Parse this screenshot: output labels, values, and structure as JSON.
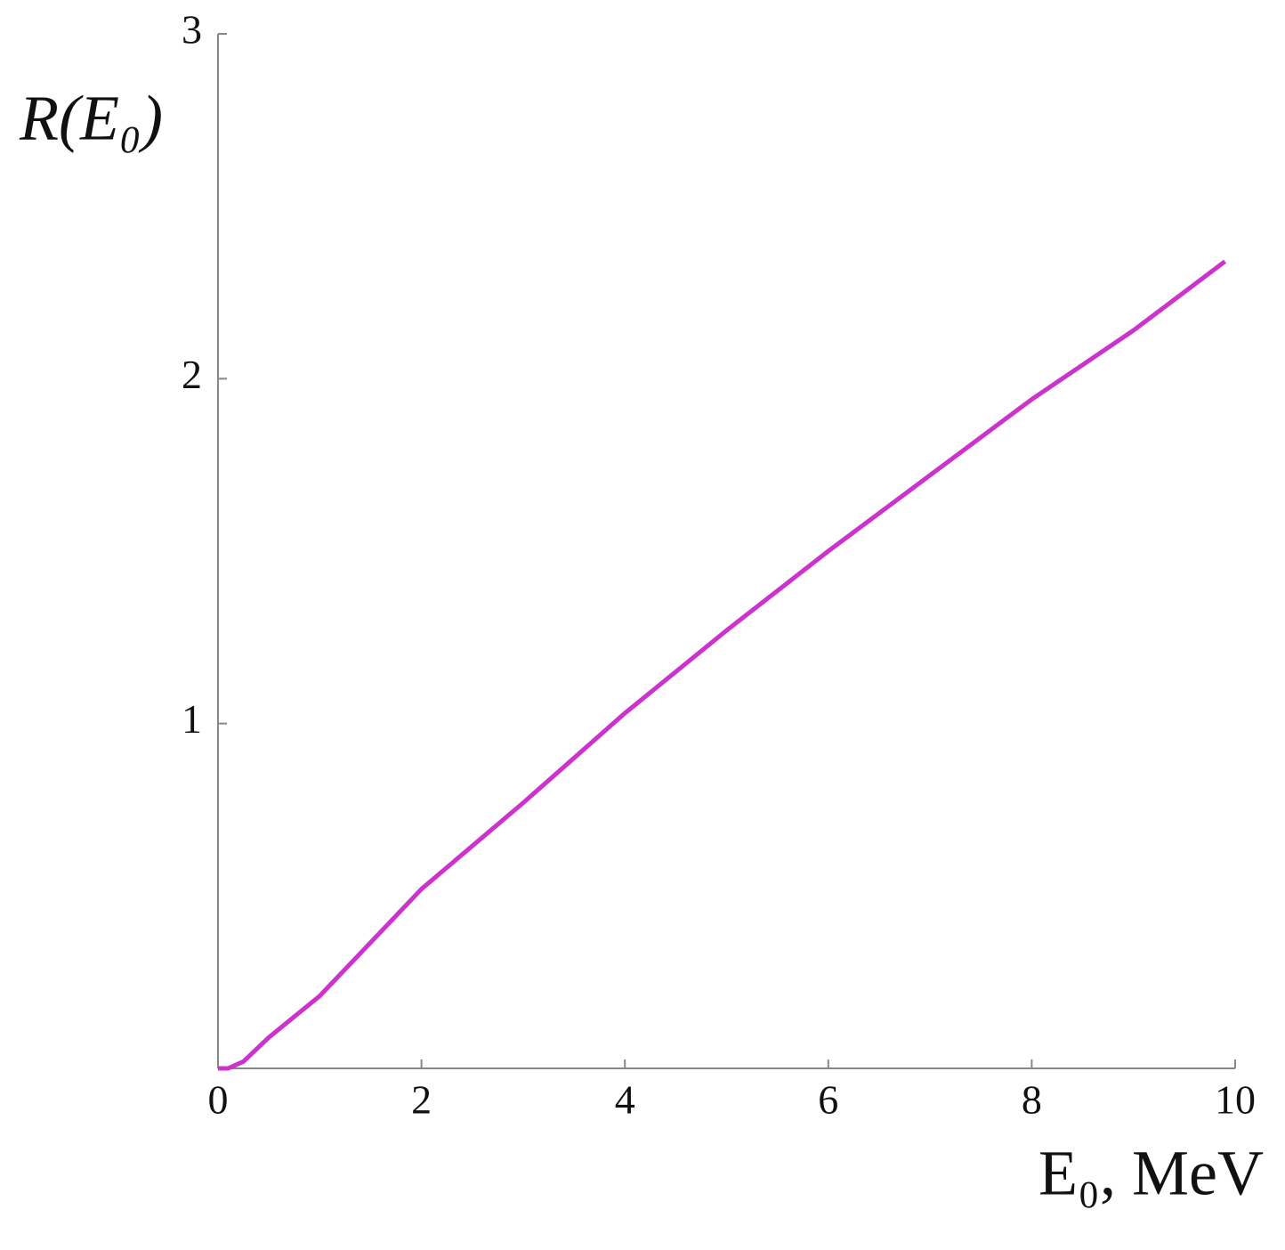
{
  "chart_data": {
    "type": "line",
    "y_label": "R(E₀)",
    "x_label": "E₀, MeV",
    "x": [
      0,
      0.1,
      0.25,
      0.5,
      1,
      2,
      3,
      4,
      5,
      6,
      7,
      8,
      9,
      9.9
    ],
    "series": [
      {
        "name": "R(E₀)",
        "color": "#cc33cc",
        "values": [
          0,
          0,
          0.02,
          0.09,
          0.21,
          0.52,
          0.77,
          1.03,
          1.27,
          1.5,
          1.72,
          1.94,
          2.14,
          2.34
        ]
      }
    ],
    "xlim": [
      0,
      10
    ],
    "ylim": [
      0,
      3
    ],
    "xticks": [
      0,
      2,
      4,
      6,
      8,
      10
    ],
    "yticks": [
      1,
      2,
      3
    ],
    "grid": false
  }
}
